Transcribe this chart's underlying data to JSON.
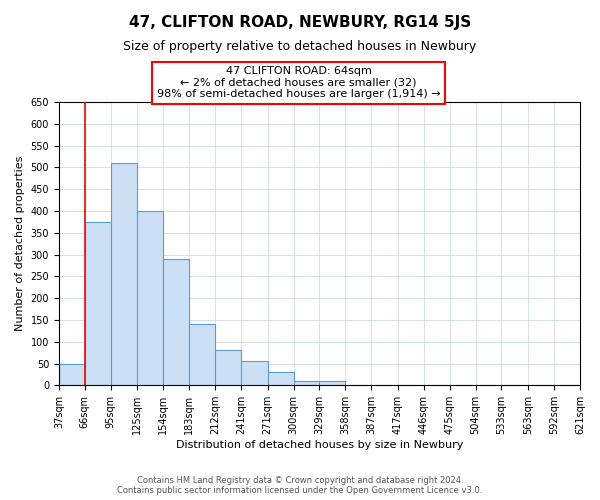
{
  "title": "47, CLIFTON ROAD, NEWBURY, RG14 5JS",
  "subtitle": "Size of property relative to detached houses in Newbury",
  "xlabel": "Distribution of detached houses by size in Newbury",
  "ylabel": "Number of detached properties",
  "bar_heights": [
    50,
    375,
    510,
    400,
    290,
    140,
    80,
    55,
    30,
    10,
    10,
    0,
    0,
    0,
    0,
    0,
    0,
    0,
    0,
    0
  ],
  "bar_labels": [
    "37sqm",
    "66sqm",
    "95sqm",
    "125sqm",
    "154sqm",
    "183sqm",
    "212sqm",
    "241sqm",
    "271sqm",
    "300sqm",
    "329sqm",
    "358sqm",
    "387sqm",
    "417sqm",
    "446sqm",
    "475sqm",
    "504sqm",
    "533sqm",
    "563sqm",
    "592sqm",
    "621sqm"
  ],
  "bar_color": "#cce0f5",
  "bar_edge_color": "#5b9bd5",
  "bin_edges": [
    37,
    66,
    95,
    125,
    154,
    183,
    212,
    241,
    271,
    300,
    329,
    358,
    387,
    417,
    446,
    475,
    504,
    533,
    563,
    592,
    621
  ],
  "ylim": [
    0,
    650
  ],
  "yticks": [
    0,
    50,
    100,
    150,
    200,
    250,
    300,
    350,
    400,
    450,
    500,
    550,
    600,
    650
  ],
  "red_line_x": 66,
  "annotation_title": "47 CLIFTON ROAD: 64sqm",
  "annotation_line2": "← 2% of detached houses are smaller (32)",
  "annotation_line3": "98% of semi-detached houses are larger (1,914) →",
  "footer1": "Contains HM Land Registry data © Crown copyright and database right 2024.",
  "footer2": "Contains public sector information licensed under the Open Government Licence v3.0.",
  "background_color": "#ffffff",
  "grid_color": "#d0dce8",
  "title_fontsize": 11,
  "subtitle_fontsize": 9,
  "annotation_fontsize": 8,
  "axis_label_fontsize": 8,
  "tick_fontsize": 7,
  "footer_fontsize": 6
}
